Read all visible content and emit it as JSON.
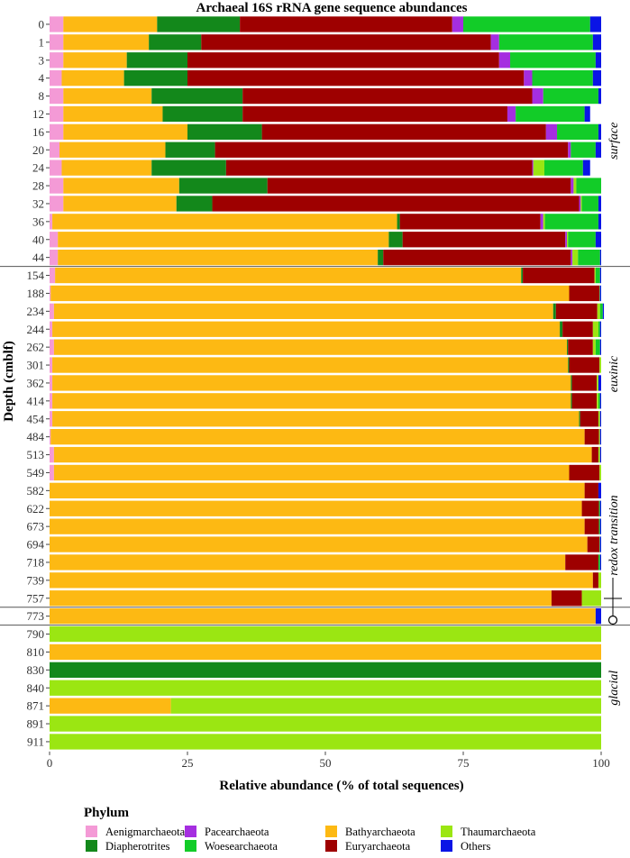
{
  "chart_data": {
    "type": "bar",
    "orientation": "horizontal",
    "stacked": true,
    "title": "Archaeal 16S rRNA gene sequence abundances",
    "xlabel": "Relative abundance (% of total sequences)",
    "ylabel": "Depth (cmblf)",
    "xlim": [
      0,
      100
    ],
    "xticks": [
      "0",
      "25",
      "50",
      "75",
      "100"
    ],
    "grid": false,
    "legend_title": "Phylum",
    "legend_position": "bottom",
    "categories": [
      "0",
      "1",
      "3",
      "4",
      "8",
      "12",
      "16",
      "20",
      "24",
      "28",
      "32",
      "36",
      "40",
      "44",
      "154",
      "188",
      "234",
      "244",
      "262",
      "301",
      "362",
      "414",
      "454",
      "484",
      "513",
      "549",
      "582",
      "622",
      "673",
      "694",
      "718",
      "739",
      "757",
      "773",
      "790",
      "810",
      "830",
      "840",
      "871",
      "891",
      "911"
    ],
    "series": [
      {
        "name": "Aenigmarchaeota",
        "color": "#f49ad6",
        "values": [
          2.5,
          2.5,
          2.5,
          2.2,
          2.5,
          2.5,
          2.5,
          1.8,
          2.2,
          2.5,
          2.5,
          0.5,
          1.5,
          1.5,
          1.0,
          0.2,
          0.8,
          0.5,
          0.8,
          0.5,
          0.5,
          0.5,
          0.5,
          0.2,
          0.8,
          0.8,
          0,
          0,
          0,
          0,
          0,
          0,
          0,
          0,
          0,
          0,
          0,
          0,
          0,
          0,
          0
        ]
      },
      {
        "name": "Bathyarchaeota",
        "color": "#fdb913",
        "values": [
          17,
          15.5,
          11.5,
          11.3,
          16,
          18,
          22.5,
          19.2,
          16.3,
          21,
          20.5,
          62.5,
          60,
          58,
          84.5,
          94,
          90.5,
          92,
          93,
          93.5,
          94,
          94,
          95.5,
          96.8,
          97.5,
          93.4,
          97,
          96.5,
          97,
          97.5,
          93.5,
          98.5,
          91,
          99,
          0,
          100,
          0,
          0,
          22,
          0,
          0
        ]
      },
      {
        "name": "Diapherotrites",
        "color": "#13881b",
        "values": [
          15,
          9.5,
          11,
          11.5,
          16.5,
          14.5,
          13.5,
          9,
          13.5,
          16,
          6.5,
          0.5,
          2.5,
          1,
          0.3,
          0,
          0.5,
          0.5,
          0.2,
          0.2,
          0.2,
          0.2,
          0.2,
          0,
          0,
          0,
          0,
          0,
          0,
          0,
          0,
          0,
          0,
          0,
          0,
          0,
          100,
          0,
          0,
          0,
          0
        ]
      },
      {
        "name": "Euryarchaeota",
        "color": "#9e0000",
        "values": [
          38.5,
          52.5,
          56.5,
          61,
          52.5,
          48,
          51.5,
          64,
          55.5,
          55,
          66.5,
          25.5,
          29.5,
          34,
          13,
          5.5,
          7.5,
          5.5,
          4.5,
          5.5,
          4.5,
          4.5,
          3.3,
          2.6,
          1.2,
          5.5,
          2.5,
          3.1,
          2.6,
          2.2,
          6,
          1,
          5.5,
          0,
          0,
          0,
          0,
          0,
          0,
          0,
          0
        ]
      },
      {
        "name": "Pacearchaeota",
        "color": "#a52ee0",
        "values": [
          2,
          1.5,
          2,
          1.5,
          2,
          1.5,
          2,
          0.5,
          0.2,
          0.5,
          0.3,
          0.5,
          0.3,
          0.3,
          0,
          0,
          0,
          0,
          0,
          0,
          0,
          0,
          0,
          0,
          0,
          0,
          0,
          0,
          0,
          0,
          0,
          0,
          0,
          0,
          0,
          0,
          0,
          0,
          0,
          0,
          0
        ]
      },
      {
        "name": "Thaumarchaeota",
        "color": "#9be612",
        "values": [
          0,
          0,
          0,
          0,
          0,
          0,
          0,
          0,
          2,
          0.5,
          0.2,
          0.3,
          0.2,
          1,
          0.2,
          0,
          0.5,
          1,
          0.5,
          0.3,
          0.3,
          0.3,
          0.3,
          0.2,
          0.3,
          0.3,
          0,
          0,
          0,
          0,
          0,
          0.5,
          3.5,
          0,
          100,
          0,
          0,
          100,
          78,
          100,
          100
        ]
      },
      {
        "name": "Woesearchaeota",
        "color": "#12cc28",
        "values": [
          23,
          17,
          15.5,
          11,
          10,
          12.5,
          7.5,
          4.5,
          7,
          4.5,
          3,
          9.7,
          5,
          4,
          0.8,
          0.1,
          0.5,
          0.3,
          0.8,
          0,
          0,
          0.3,
          0,
          0,
          0,
          0,
          0,
          0.2,
          0.2,
          0.1,
          0.3,
          0,
          0,
          0,
          0,
          0,
          0,
          0,
          0,
          0,
          0
        ]
      },
      {
        "name": "Others",
        "color": "#0a14e6",
        "values": [
          2,
          1.5,
          1,
          1.5,
          0.5,
          1,
          0.5,
          1,
          1.3,
          0,
          0.5,
          0.5,
          1,
          0.2,
          0.2,
          0.2,
          0.2,
          0.2,
          0.2,
          0,
          0.5,
          0.2,
          0.2,
          0.2,
          0.2,
          0,
          0.5,
          0.2,
          0.2,
          0.2,
          0.2,
          0,
          0,
          1,
          0,
          0,
          0,
          0,
          0,
          0,
          0
        ]
      }
    ],
    "zones": [
      {
        "label": "surface",
        "start": "0",
        "end": "44"
      },
      {
        "label": "euxinic",
        "start": "154",
        "end": "549"
      },
      {
        "label": "redox transition",
        "start": "582",
        "end": "757"
      },
      {
        "label": "glacial",
        "start": "790",
        "end": "911"
      }
    ]
  }
}
